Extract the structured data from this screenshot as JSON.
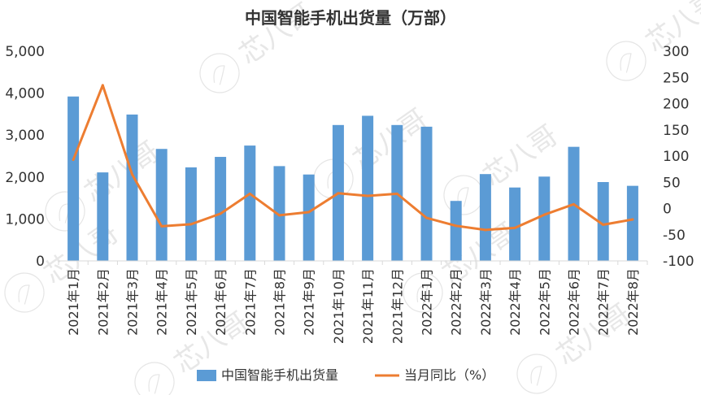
{
  "chart_data": {
    "type": "bar",
    "title": "中国智能手机出货量（万部）",
    "categories": [
      "2021年1月",
      "2021年2月",
      "2021年3月",
      "2021年4月",
      "2021年5月",
      "2021年6月",
      "2021年7月",
      "2021年8月",
      "2021年9月",
      "2021年10月",
      "2021年11月",
      "2021年12月",
      "2022年1月",
      "2022年2月",
      "2022年3月",
      "2022年4月",
      "2022年5月",
      "2022年6月",
      "2022年7月",
      "2022年8月"
    ],
    "series": [
      {
        "name": "中国智能手机出货量",
        "type": "bar",
        "axis": "left",
        "color": "#5b9bd5",
        "values": [
          3920,
          2110,
          3490,
          2670,
          2230,
          2480,
          2750,
          2260,
          2060,
          3240,
          3460,
          3240,
          3200,
          1430,
          2070,
          1750,
          2010,
          2720,
          1880,
          1790
        ]
      },
      {
        "name": "当月同比（%）",
        "type": "line",
        "axis": "right",
        "color": "#ed7d31",
        "values": [
          93,
          235,
          65,
          -34,
          -30,
          -10,
          28,
          -13,
          -7,
          29,
          24,
          28,
          -18,
          -33,
          -41,
          -37,
          -12,
          8,
          -31,
          -21
        ]
      }
    ],
    "y_left": {
      "min": 0,
      "max": 5000,
      "ticks": [
        "0",
        "1,000",
        "2,000",
        "3,000",
        "4,000",
        "5,000"
      ],
      "tick_values": [
        0,
        1000,
        2000,
        3000,
        4000,
        5000
      ]
    },
    "y_right": {
      "min": -100,
      "max": 300,
      "ticks": [
        "-100",
        "-50",
        "0",
        "50",
        "100",
        "150",
        "200",
        "250",
        "300"
      ],
      "tick_values": [
        -100,
        -50,
        0,
        50,
        100,
        150,
        200,
        250,
        300
      ]
    },
    "grid": false,
    "legend_position": "bottom"
  },
  "watermark": {
    "text": "芯八哥"
  }
}
